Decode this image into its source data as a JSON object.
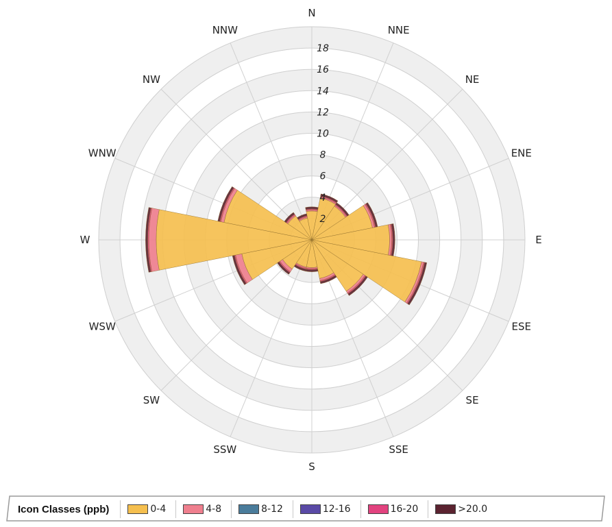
{
  "chart_data": {
    "type": "polar-bar",
    "directions": [
      "N",
      "NNE",
      "NE",
      "ENE",
      "E",
      "ESE",
      "SE",
      "SSE",
      "S",
      "SSW",
      "SW",
      "WSW",
      "W",
      "WNW",
      "NW",
      "NNW"
    ],
    "radial_ticks": [
      2,
      4,
      6,
      8,
      10,
      12,
      14,
      16,
      18
    ],
    "radial_max": 20,
    "series": [
      {
        "name": "0-4",
        "color": "#f5bf4f",
        "values": [
          2.7,
          4.0,
          3.8,
          5.8,
          7.3,
          10.5,
          5.8,
          3.7,
          2.6,
          2.6,
          3.3,
          6.7,
          14.6,
          8.4,
          2.7,
          2.1
        ]
      },
      {
        "name": "4-8",
        "color": "#ef7f8e",
        "values": [
          0.1,
          0.1,
          0.1,
          0.2,
          0.2,
          0.2,
          0.2,
          0.2,
          0.1,
          0.1,
          0.3,
          0.6,
          0.7,
          0.3,
          0.1,
          0.1
        ]
      },
      {
        "name": "8-12",
        "color": "#4a7c9b",
        "values": [
          0,
          0,
          0,
          0,
          0,
          0,
          0,
          0,
          0,
          0,
          0,
          0,
          0,
          0,
          0,
          0
        ]
      },
      {
        "name": "12-16",
        "color": "#5a4aa6",
        "values": [
          0,
          0,
          0,
          0,
          0,
          0,
          0,
          0,
          0,
          0,
          0,
          0,
          0,
          0,
          0,
          0
        ]
      },
      {
        "name": "16-20",
        "color": "#e2437f",
        "values": [
          0.1,
          0.1,
          0.1,
          0.1,
          0.1,
          0.1,
          0.1,
          0.1,
          0.1,
          0.1,
          0.1,
          0.1,
          0.1,
          0.1,
          0.1,
          0.1
        ]
      },
      {
        "name": ">20.0",
        "color": "#5b2330",
        "values": [
          0.2,
          0.2,
          0.2,
          0.2,
          0.2,
          0.2,
          0.2,
          0.2,
          0.2,
          0.2,
          0.2,
          0.2,
          0.2,
          0.2,
          0.2,
          0.2
        ]
      }
    ],
    "legend": {
      "title": "Icon Classes (ppb)",
      "placement": "bottom"
    }
  }
}
